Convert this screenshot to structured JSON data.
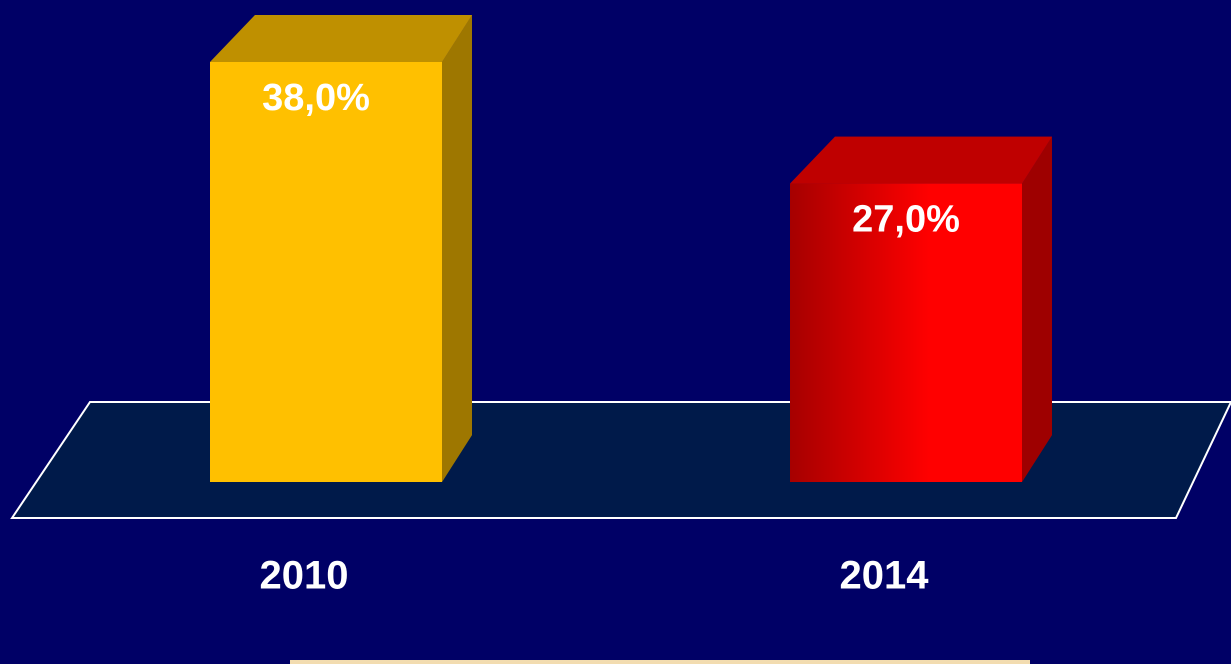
{
  "chart_data": {
    "type": "bar3d",
    "categories": [
      "2010",
      "2014"
    ],
    "values": [
      38,
      27
    ],
    "value_labels": [
      "38,0%",
      "27,0%"
    ],
    "colors": [
      "#ffc000",
      "#ff0000"
    ]
  }
}
